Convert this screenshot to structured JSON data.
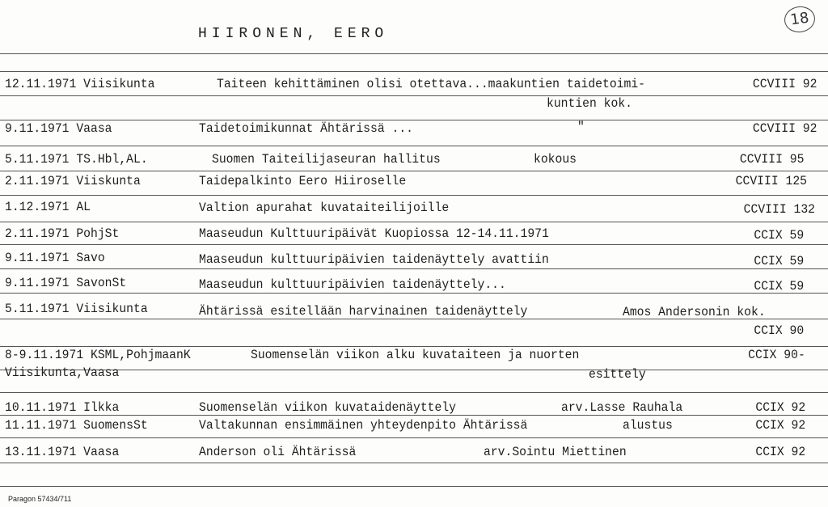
{
  "header": {
    "name": "HIIRONEN, EERO",
    "card_number": "18"
  },
  "entries": [
    {
      "date_source": "12.11.1971 Viisikunta",
      "title": "Taiteen kehittäminen olisi otettava...maakuntien taidetoimi-",
      "cont": "kuntien kok.",
      "ref": "CCVIII 92"
    },
    {
      "date_source": "9.11.1971 Vaasa",
      "title": "Taidetoimikunnat Ähtärissä ...",
      "note": "\"",
      "ref": "CCVIII 92"
    },
    {
      "date_source": "5.11.1971 TS.Hbl,AL.",
      "title": "Suomen Taiteilijaseuran hallitus",
      "note": "kokous",
      "ref": "CCVIII 95"
    },
    {
      "date_source": "2.11.1971 Viiskunta",
      "title": "Taidepalkinto Eero Hiiroselle",
      "ref": "CCVIII 125"
    },
    {
      "date_source": "1.12.1971 AL",
      "title": "Valtion apurahat kuvataiteilijoille",
      "ref": "CCVIII 132"
    },
    {
      "date_source": "2.11.1971 PohjSt",
      "title": "Maaseudun Kulttuuripäivät Kuopiossa 12-14.11.1971",
      "ref": "CCIX 59"
    },
    {
      "date_source": "9.11.1971 Savo",
      "title": "Maaseudun kulttuuripäivien taidenäyttely avattiin",
      "ref": "CCIX 59"
    },
    {
      "date_source": "9.11.1971 SavonSt",
      "title": "Maaseudun kulttuuripäivien taidenäyttely...",
      "ref": "CCIX 59"
    },
    {
      "date_source": "5.11.1971 Viisikunta",
      "title": "Ähtärissä esitellään harvinainen taidenäyttely",
      "note": "Amos Andersonin kok.",
      "ref": "CCIX 90"
    },
    {
      "date_source": "8-9.11.1971 KSML,PohjmaanK",
      "title": "Suomenselän viikon alku kuvataiteen ja nuorten",
      "source2": "Viisikunta,Vaasa",
      "cont": "esittely",
      "ref": "CCIX 90-"
    },
    {
      "date_source": "10.11.1971 Ilkka",
      "title": "Suomenselän viikon kuvataidenäyttely",
      "note": "arv.Lasse Rauhala",
      "ref": "CCIX 92"
    },
    {
      "date_source": "11.11.1971 SuomensSt",
      "title": "Valtakunnan ensimmäinen yhteydenpito Ähtärissä",
      "note": "alustus",
      "ref": "CCIX 92"
    },
    {
      "date_source": "13.11.1971 Vaasa",
      "title": "Anderson oli Ähtärissä",
      "note": "arv.Sointu Miettinen",
      "ref": "CCIX 92"
    }
  ],
  "footer": "Paragon 57434/711"
}
